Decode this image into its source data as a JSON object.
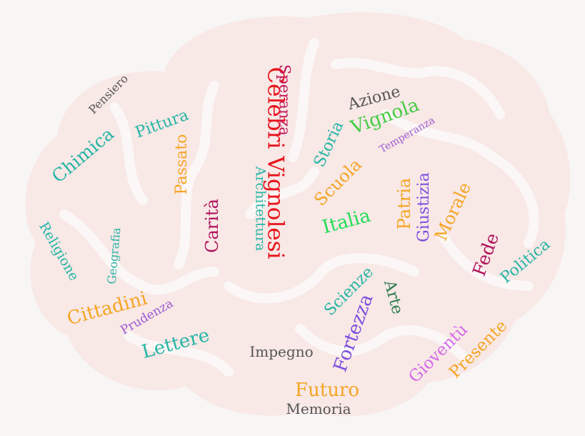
{
  "words": [
    {
      "text": "Celebri Vignolesi",
      "color": "#e8141c"
    },
    {
      "text": "Speranza",
      "color": "#c2185b"
    },
    {
      "text": "Architettura",
      "color": "#26b5a5"
    },
    {
      "text": "Carità",
      "color": "#b0125b"
    },
    {
      "text": "Passato",
      "color": "#f5a524"
    },
    {
      "text": "Pittura",
      "color": "#26b5a5"
    },
    {
      "text": "Pensiero",
      "color": "#555555"
    },
    {
      "text": "Chimica",
      "color": "#26b5a5"
    },
    {
      "text": "Religione",
      "color": "#26b5a5"
    },
    {
      "text": "Geografia",
      "color": "#26b5a5"
    },
    {
      "text": "Cittadini",
      "color": "#f5a524"
    },
    {
      "text": "Prudenza",
      "color": "#9c5bd1"
    },
    {
      "text": "Lettere",
      "color": "#26b5a5"
    },
    {
      "text": "Impegno",
      "color": "#555555"
    },
    {
      "text": "Futuro",
      "color": "#f5a524"
    },
    {
      "text": "Memoria",
      "color": "#555555"
    },
    {
      "text": "Fortezza",
      "color": "#7c4dde"
    },
    {
      "text": "Scienze",
      "color": "#26b5a5"
    },
    {
      "text": "Arte",
      "color": "#2e7d4f"
    },
    {
      "text": "Gioventù",
      "color": "#d46ae8"
    },
    {
      "text": "Presente",
      "color": "#f5a524"
    },
    {
      "text": "Politica",
      "color": "#26b5a5"
    },
    {
      "text": "Fede",
      "color": "#b0125b"
    },
    {
      "text": "Morale",
      "color": "#f5a524"
    },
    {
      "text": "Giustizia",
      "color": "#7c4dde"
    },
    {
      "text": "Patria",
      "color": "#f5a524"
    },
    {
      "text": "Italia",
      "color": "#22dd55"
    },
    {
      "text": "Scuola",
      "color": "#f5a524"
    },
    {
      "text": "Storia",
      "color": "#26b5a5"
    },
    {
      "text": "Azione",
      "color": "#555555"
    },
    {
      "text": "Vignola",
      "color": "#44cc44"
    },
    {
      "text": "Temperanza",
      "color": "#9c5bd1"
    }
  ],
  "brand_colors": {
    "brain_fill": "#f8e8e6",
    "brain_lines": "#fbf7f6",
    "background": "#f8f6f5"
  }
}
